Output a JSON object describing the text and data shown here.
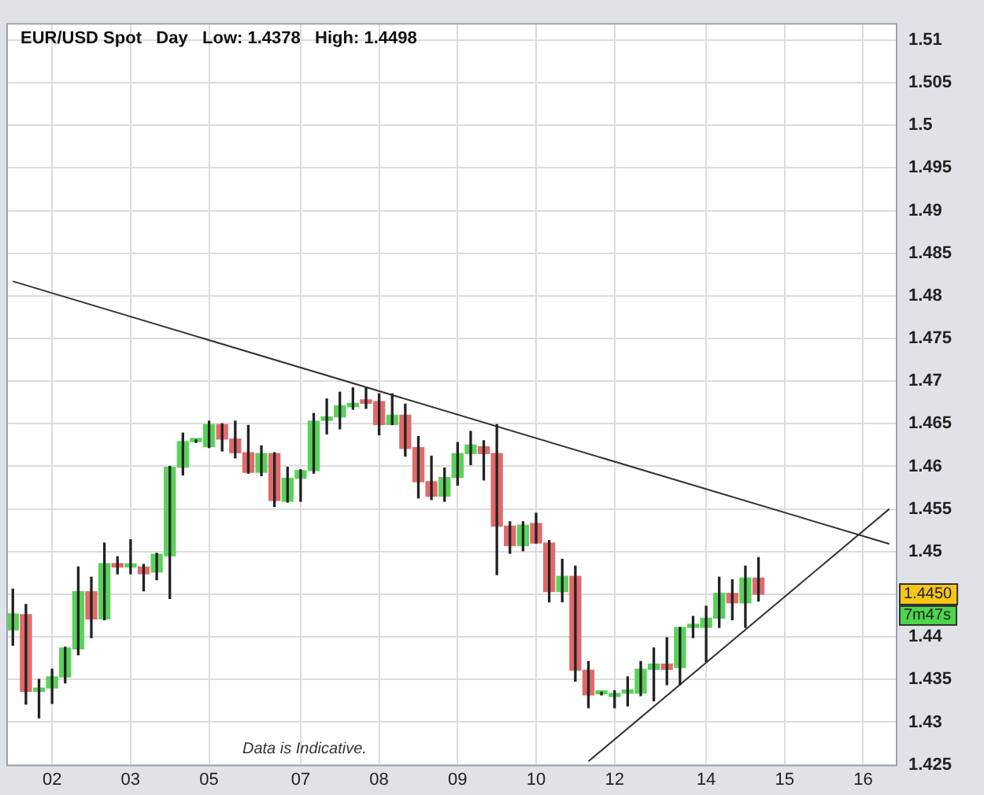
{
  "chart_data": {
    "type": "candlestick",
    "title": "EUR/USD Spot   Day   Low: 1.4378   High: 1.4498",
    "categories": [
      null,
      null,
      null,
      "02",
      null,
      null,
      null,
      null,
      null,
      "03",
      null,
      null,
      null,
      null,
      null,
      "05",
      null,
      null,
      null,
      null,
      null,
      null,
      "07",
      null,
      null,
      null,
      null,
      null,
      "08",
      null,
      null,
      null,
      null,
      null,
      "09",
      null,
      null,
      null,
      null,
      null,
      "10",
      null,
      null,
      null,
      null,
      null,
      "12",
      null,
      null,
      null,
      null,
      null,
      null,
      "14",
      null,
      null,
      null,
      null,
      null,
      "15",
      null,
      null,
      null,
      null,
      null,
      "16",
      null,
      null
    ],
    "ohlc": [
      [
        1.4408,
        1.4456,
        1.439,
        1.4427
      ],
      [
        1.4426,
        1.4438,
        1.4321,
        1.4336
      ],
      [
        1.4336,
        1.435,
        1.4305,
        1.434
      ],
      [
        1.434,
        1.4362,
        1.4322,
        1.4353
      ],
      [
        1.4353,
        1.4388,
        1.4346,
        1.4387
      ],
      [
        1.4386,
        1.4482,
        1.4379,
        1.4453
      ],
      [
        1.4453,
        1.447,
        1.4399,
        1.4421
      ],
      [
        1.4421,
        1.451,
        1.442,
        1.4486
      ],
      [
        1.4486,
        1.4494,
        1.4474,
        1.4482
      ],
      [
        1.4482,
        1.4514,
        1.4474,
        1.4483
      ],
      [
        1.4482,
        1.4485,
        1.4454,
        1.4474
      ],
      [
        1.4476,
        1.4498,
        1.4467,
        1.4497
      ],
      [
        1.4495,
        1.46,
        1.4445,
        1.4599
      ],
      [
        1.4599,
        1.4639,
        1.459,
        1.4629
      ],
      [
        1.4629,
        1.4631,
        1.4628,
        1.463
      ],
      [
        1.4623,
        1.4653,
        1.4622,
        1.4649
      ],
      [
        1.4649,
        1.465,
        1.4618,
        1.4632
      ],
      [
        1.4632,
        1.4653,
        1.461,
        1.4616
      ],
      [
        1.4616,
        1.4648,
        1.4592,
        1.4593
      ],
      [
        1.4593,
        1.4624,
        1.4589,
        1.4615
      ],
      [
        1.4615,
        1.4616,
        1.4553,
        1.456
      ],
      [
        1.4559,
        1.4599,
        1.4558,
        1.4586
      ],
      [
        1.4586,
        1.4596,
        1.4559,
        1.4595
      ],
      [
        1.4595,
        1.4662,
        1.4592,
        1.4653
      ],
      [
        1.4654,
        1.4679,
        1.4638,
        1.4658
      ],
      [
        1.4658,
        1.4687,
        1.4644,
        1.4671
      ],
      [
        1.467,
        1.4692,
        1.4667,
        1.4674
      ],
      [
        1.4678,
        1.4692,
        1.4668,
        1.4674
      ],
      [
        1.4676,
        1.4685,
        1.4637,
        1.4649
      ],
      [
        1.4649,
        1.4685,
        1.4649,
        1.466
      ],
      [
        1.466,
        1.4673,
        1.4612,
        1.4621
      ],
      [
        1.4622,
        1.4635,
        1.4563,
        1.4582
      ],
      [
        1.4582,
        1.4612,
        1.4561,
        1.4565
      ],
      [
        1.4565,
        1.4598,
        1.4559,
        1.4587
      ],
      [
        1.4587,
        1.4628,
        1.4578,
        1.4615
      ],
      [
        1.4615,
        1.4641,
        1.4602,
        1.4625
      ],
      [
        1.4623,
        1.463,
        1.4584,
        1.4615
      ],
      [
        1.4615,
        1.4649,
        1.4473,
        1.453
      ],
      [
        1.453,
        1.4535,
        1.4498,
        1.4507
      ],
      [
        1.4507,
        1.4535,
        1.4501,
        1.4531
      ],
      [
        1.4533,
        1.4545,
        1.451,
        1.451
      ],
      [
        1.451,
        1.4513,
        1.4441,
        1.4453
      ],
      [
        1.4453,
        1.4491,
        1.4441,
        1.4471
      ],
      [
        1.4471,
        1.4483,
        1.4348,
        1.4361
      ],
      [
        1.4361,
        1.4371,
        1.4317,
        1.4332
      ],
      [
        1.4333,
        1.4335,
        1.4332,
        1.4334
      ],
      [
        1.433,
        1.4337,
        1.4317,
        1.4333
      ],
      [
        1.4334,
        1.4353,
        1.4319,
        1.4335
      ],
      [
        1.4334,
        1.4371,
        1.4331,
        1.4362
      ],
      [
        1.4362,
        1.4387,
        1.4325,
        1.4368
      ],
      [
        1.4368,
        1.4399,
        1.4344,
        1.4362
      ],
      [
        1.4364,
        1.4411,
        1.4344,
        1.4411
      ],
      [
        1.4411,
        1.4424,
        1.4399,
        1.4412
      ],
      [
        1.4411,
        1.4436,
        1.4371,
        1.4422
      ],
      [
        1.4422,
        1.447,
        1.4411,
        1.4451
      ],
      [
        1.4451,
        1.4467,
        1.442,
        1.444
      ],
      [
        1.444,
        1.4483,
        1.4411,
        1.4469
      ],
      [
        1.4469,
        1.4493,
        1.4442,
        1.445
      ],
      null,
      null,
      null,
      null,
      null,
      null,
      null,
      null,
      null,
      null
    ],
    "colors": [
      "#5ad15a",
      "#e06a6a",
      "#5ad15a",
      "#5ad15a",
      "#5ad15a",
      "#5ad15a",
      "#e06a6a",
      "#5ad15a",
      "#e06a6a",
      "#5ad15a",
      "#e06a6a",
      "#5ad15a",
      "#5ad15a",
      "#5ad15a",
      "#5ad15a",
      "#5ad15a",
      "#e06a6a",
      "#e06a6a",
      "#e06a6a",
      "#5ad15a",
      "#e06a6a",
      "#5ad15a",
      "#5ad15a",
      "#5ad15a",
      "#5ad15a",
      "#5ad15a",
      "#5ad15a",
      "#e06a6a",
      "#e06a6a",
      "#5ad15a",
      "#e06a6a",
      "#e06a6a",
      "#e06a6a",
      "#5ad15a",
      "#5ad15a",
      "#5ad15a",
      "#e06a6a",
      "#e06a6a",
      "#e06a6a",
      "#5ad15a",
      "#e06a6a",
      "#e06a6a",
      "#5ad15a",
      "#e06a6a",
      "#e06a6a",
      "#5ad15a",
      "#5ad15a",
      "#5ad15a",
      "#5ad15a",
      "#5ad15a",
      "#e06a6a",
      "#5ad15a",
      "#5ad15a",
      "#5ad15a",
      "#5ad15a",
      "#e06a6a",
      "#5ad15a",
      "#e06a6a",
      null,
      null,
      null,
      null,
      null,
      null,
      null,
      null,
      null,
      null
    ],
    "series": [
      {
        "type": "line",
        "color": "#333333",
        "values": [
          1.4817,
          null,
          null,
          null,
          null,
          null,
          null,
          null,
          null,
          null,
          null,
          null,
          null,
          null,
          null,
          null,
          null,
          null,
          null,
          null,
          null,
          null,
          null,
          null,
          null,
          null,
          null,
          null,
          null,
          null,
          null,
          null,
          null,
          null,
          null,
          null,
          null,
          null,
          null,
          null,
          null,
          null,
          null,
          null,
          null,
          null,
          null,
          null,
          null,
          null,
          null,
          null,
          null,
          null,
          null,
          null,
          null,
          null,
          null,
          null,
          null,
          null,
          null,
          null,
          null,
          null,
          null,
          1.4509
        ]
      },
      {
        "type": "line",
        "color": "#333333",
        "values": [
          null,
          null,
          null,
          null,
          null,
          null,
          null,
          null,
          null,
          null,
          null,
          null,
          null,
          null,
          null,
          null,
          null,
          null,
          null,
          null,
          null,
          null,
          null,
          null,
          null,
          null,
          null,
          null,
          null,
          null,
          null,
          null,
          null,
          null,
          null,
          null,
          null,
          null,
          null,
          null,
          null,
          null,
          null,
          null,
          1.4254,
          null,
          null,
          null,
          null,
          null,
          null,
          null,
          null,
          null,
          null,
          null,
          null,
          null,
          null,
          null,
          null,
          null,
          null,
          null,
          null,
          null,
          null,
          1.455
        ]
      }
    ],
    "ylim": [
      1.425,
      1.512
    ],
    "yticks": [
      1.425,
      1.43,
      1.435,
      1.44,
      {
        "value": 1.445,
        "label": null
      },
      1.45,
      1.455,
      1.46,
      1.465,
      1.47,
      1.475,
      1.48,
      1.485,
      1.49,
      1.495,
      1.5,
      1.505,
      1.51
    ],
    "grid": true,
    "legend": false,
    "annotations": [
      "1.4450",
      "7m47s",
      "Data is Indicative."
    ]
  }
}
